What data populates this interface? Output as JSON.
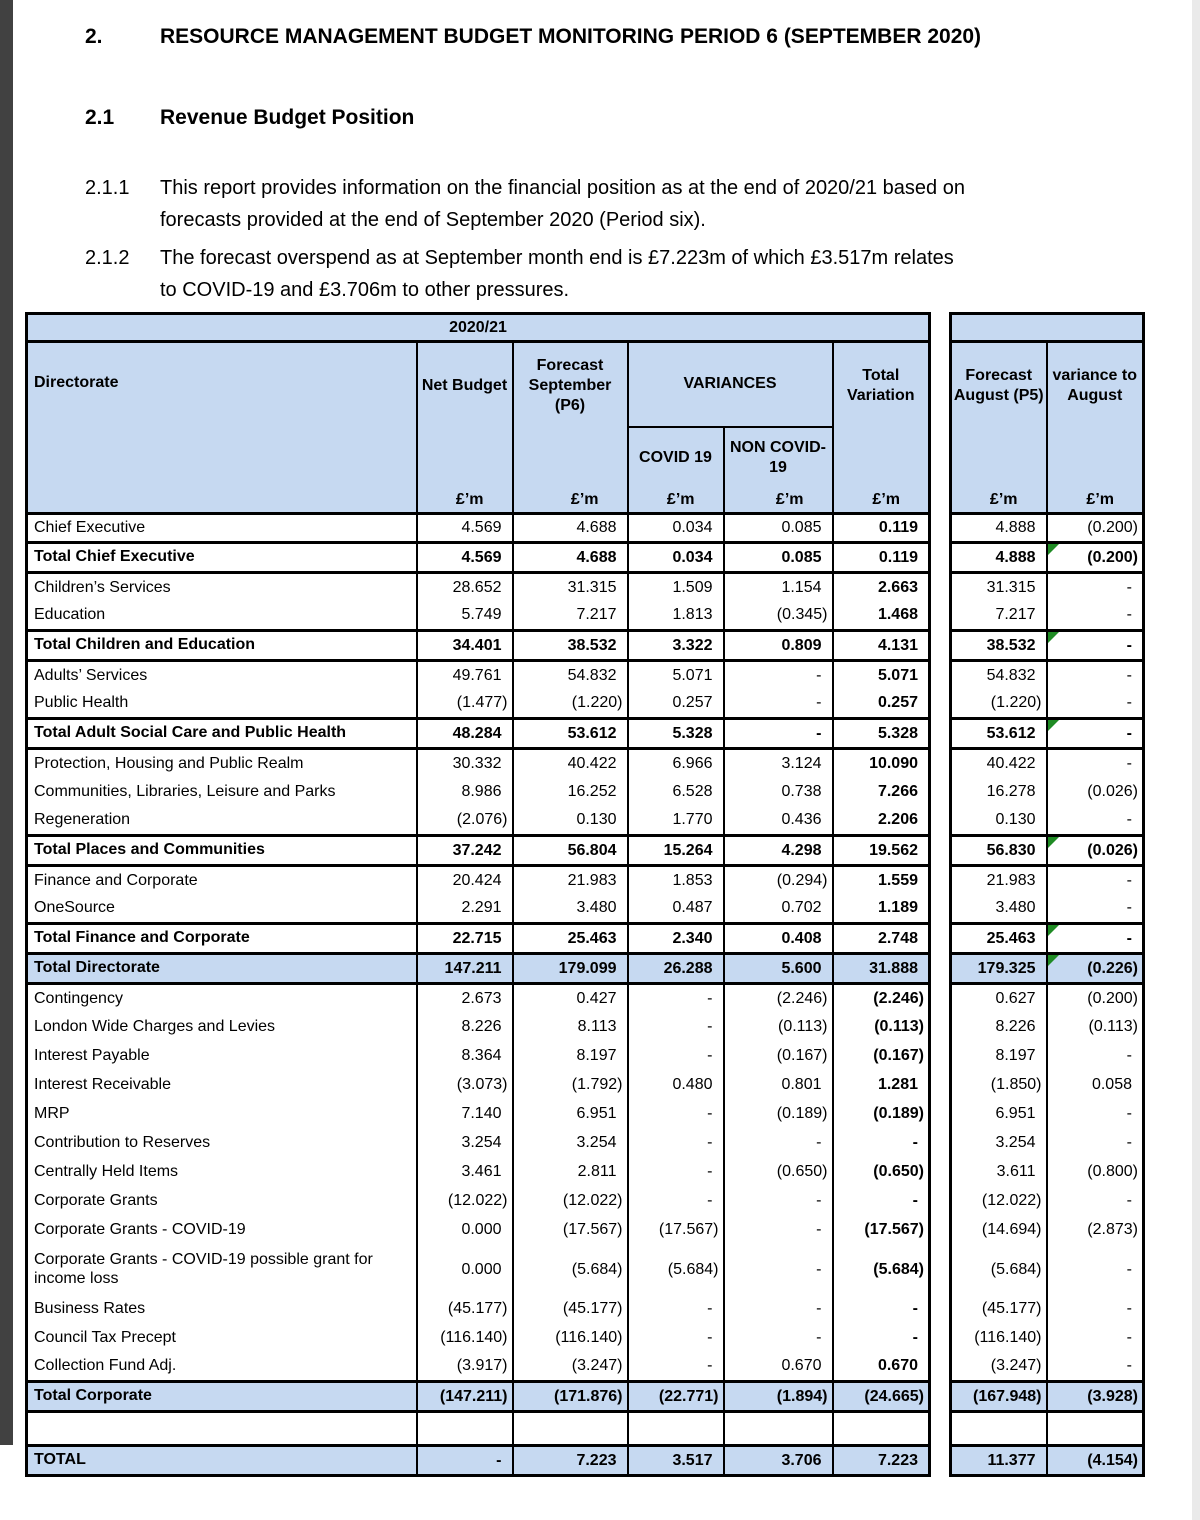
{
  "colors": {
    "header_blue": "#c6d9f1",
    "marker_green": "#1f8b24",
    "strip_dark": "#414141",
    "strip_light": "#eaeaea",
    "border_black": "#000000"
  },
  "doc": {
    "h1_num": "2.",
    "h1_text": "RESOURCE MANAGEMENT BUDGET MONITORING PERIOD 6 (SEPTEMBER 2020)",
    "h2_num": "2.1",
    "h2_text": "Revenue Budget Position",
    "p1_num": "2.1.1",
    "p1_text": "This report provides information on the financial position as at the end of 2020/21 based on forecasts provided at the end of September 2020 (Period six).",
    "p2_num": "2.1.2",
    "p2_text": "The forecast overspend as at September month end is £7.223m of which £3.517m relates to COVID-19 and £3.706m to other pressures."
  },
  "table": {
    "year_header": "2020/21",
    "headers": {
      "directorate": "Directorate",
      "net_budget": "Net Budget",
      "forecast_september": "Forecast September (P6)",
      "variances": "VARIANCES",
      "covid": "COVID 19",
      "non_covid": "NON COVID-19",
      "total_variation": "Total Variation",
      "forecast_august": "Forecast August (P5)",
      "variance_to_august": "variance to August",
      "unit": "£’m"
    },
    "rows": [
      {
        "label": "Chief Executive",
        "style": "plain",
        "values": [
          "4.569",
          "4.688",
          "0.034",
          "0.085",
          "0.119",
          "4.888",
          "(0.200)"
        ]
      },
      {
        "label": "Total Chief Executive",
        "style": "total",
        "marker": true,
        "values": [
          "4.569",
          "4.688",
          "0.034",
          "0.085",
          "0.119",
          "4.888",
          "(0.200)"
        ]
      },
      {
        "label": "Children’s Services",
        "style": "plain",
        "values": [
          "28.652",
          "31.315",
          "1.509",
          "1.154",
          "2.663",
          "31.315",
          "-"
        ]
      },
      {
        "label": "Education",
        "style": "plain",
        "values": [
          "5.749",
          "7.217",
          "1.813",
          "(0.345)",
          "1.468",
          "7.217",
          "-"
        ]
      },
      {
        "label": "Total Children and Education",
        "style": "total",
        "marker": true,
        "values": [
          "34.401",
          "38.532",
          "3.322",
          "0.809",
          "4.131",
          "38.532",
          "-"
        ]
      },
      {
        "label": "Adults’ Services",
        "style": "plain",
        "values": [
          "49.761",
          "54.832",
          "5.071",
          "-",
          "5.071",
          "54.832",
          "-"
        ]
      },
      {
        "label": "Public Health",
        "style": "plain",
        "values": [
          "(1.477)",
          "(1.220)",
          "0.257",
          "-",
          "0.257",
          "(1.220)",
          "-"
        ]
      },
      {
        "label": "Total Adult Social Care and Public Health",
        "style": "total",
        "marker": true,
        "values": [
          "48.284",
          "53.612",
          "5.328",
          "-",
          "5.328",
          "53.612",
          "-"
        ]
      },
      {
        "label": "Protection, Housing and Public Realm",
        "style": "plain",
        "values": [
          "30.332",
          "40.422",
          "6.966",
          "3.124",
          "10.090",
          "40.422",
          "-"
        ]
      },
      {
        "label": "Communities, Libraries, Leisure and Parks",
        "style": "plain",
        "values": [
          "8.986",
          "16.252",
          "6.528",
          "0.738",
          "7.266",
          "16.278",
          "(0.026)"
        ]
      },
      {
        "label": "Regeneration",
        "style": "plain",
        "values": [
          "(2.076)",
          "0.130",
          "1.770",
          "0.436",
          "2.206",
          "0.130",
          "-"
        ]
      },
      {
        "label": "Total Places and Communities",
        "style": "total",
        "marker": true,
        "values": [
          "37.242",
          "56.804",
          "15.264",
          "4.298",
          "19.562",
          "56.830",
          "(0.026)"
        ]
      },
      {
        "label": "Finance and Corporate",
        "style": "plain",
        "values": [
          "20.424",
          "21.983",
          "1.853",
          "(0.294)",
          "1.559",
          "21.983",
          "-"
        ]
      },
      {
        "label": "OneSource",
        "style": "plain",
        "values": [
          "2.291",
          "3.480",
          "0.487",
          "0.702",
          "1.189",
          "3.480",
          "-"
        ]
      },
      {
        "label": "Total Finance and Corporate",
        "style": "total",
        "marker": true,
        "values": [
          "22.715",
          "25.463",
          "2.340",
          "0.408",
          "2.748",
          "25.463",
          "-"
        ]
      },
      {
        "label": "Total Directorate",
        "style": "grand",
        "marker": true,
        "values": [
          "147.211",
          "179.099",
          "26.288",
          "5.600",
          "31.888",
          "179.325",
          "(0.226)"
        ]
      },
      {
        "label": "Contingency",
        "style": "plain",
        "values": [
          "2.673",
          "0.427",
          "-",
          "(2.246)",
          "(2.246)",
          "0.627",
          "(0.200)"
        ]
      },
      {
        "label": "London Wide Charges and Levies",
        "style": "plain",
        "values": [
          "8.226",
          "8.113",
          "-",
          "(0.113)",
          "(0.113)",
          "8.226",
          "(0.113)"
        ]
      },
      {
        "label": "Interest Payable",
        "style": "plain",
        "values": [
          "8.364",
          "8.197",
          "-",
          "(0.167)",
          "(0.167)",
          "8.197",
          "-"
        ]
      },
      {
        "label": "Interest Receivable",
        "style": "plain",
        "values": [
          "(3.073)",
          "(1.792)",
          "0.480",
          "0.801",
          "1.281",
          "(1.850)",
          "0.058"
        ]
      },
      {
        "label": "MRP",
        "style": "plain",
        "values": [
          "7.140",
          "6.951",
          "-",
          "(0.189)",
          "(0.189)",
          "6.951",
          "-"
        ]
      },
      {
        "label": "Contribution to Reserves",
        "style": "plain",
        "values": [
          "3.254",
          "3.254",
          "-",
          "-",
          "-",
          "3.254",
          "-"
        ]
      },
      {
        "label": "Centrally Held Items",
        "style": "plain",
        "values": [
          "3.461",
          "2.811",
          "-",
          "(0.650)",
          "(0.650)",
          "3.611",
          "(0.800)"
        ]
      },
      {
        "label": "Corporate Grants",
        "style": "plain",
        "values": [
          "(12.022)",
          "(12.022)",
          "-",
          "-",
          "-",
          "(12.022)",
          "-"
        ]
      },
      {
        "label": "Corporate Grants - COVID-19",
        "style": "plain",
        "values": [
          "0.000",
          "(17.567)",
          "(17.567)",
          "-",
          "(17.567)",
          "(14.694)",
          "(2.873)"
        ]
      },
      {
        "label": "Corporate Grants - COVID-19 possible grant for income loss",
        "style": "plain",
        "tall": true,
        "values": [
          "0.000",
          "(5.684)",
          "(5.684)",
          "-",
          "(5.684)",
          "(5.684)",
          "-"
        ]
      },
      {
        "label": "Business Rates",
        "style": "plain",
        "values": [
          "(45.177)",
          "(45.177)",
          "-",
          "-",
          "-",
          "(45.177)",
          "-"
        ]
      },
      {
        "label": "Council Tax Precept",
        "style": "plain",
        "values": [
          "(116.140)",
          "(116.140)",
          "-",
          "-",
          "-",
          "(116.140)",
          "-"
        ]
      },
      {
        "label": "Collection Fund Adj.",
        "style": "plain",
        "values": [
          "(3.917)",
          "(3.247)",
          "-",
          "0.670",
          "0.670",
          "(3.247)",
          "-"
        ]
      },
      {
        "label": "Total Corporate",
        "style": "grand",
        "values": [
          "(147.211)",
          "(171.876)",
          "(22.771)",
          "(1.894)",
          "(24.665)",
          "(167.948)",
          "(3.928)"
        ]
      },
      {
        "label": "",
        "style": "blank",
        "values": [
          "",
          "",
          "",
          "",
          "",
          "",
          ""
        ]
      },
      {
        "label": "TOTAL",
        "style": "grand",
        "values": [
          "-",
          "7.223",
          "3.517",
          "3.706",
          "7.223",
          "11.377",
          "(4.154)"
        ]
      }
    ]
  }
}
